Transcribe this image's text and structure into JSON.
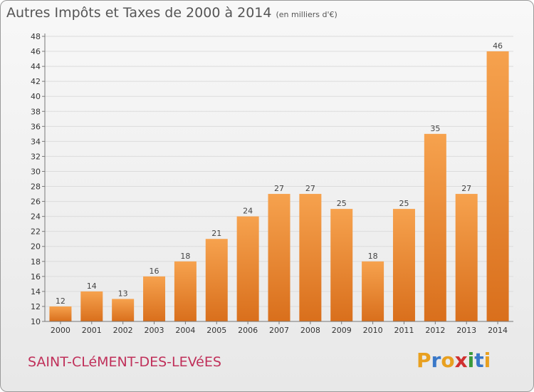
{
  "title": "Autres Impôts et Taxes de 2000 à 2014",
  "subtitle": "(en milliers d'€)",
  "commune": "SAINT-CLéMENT-DES-LEVéES",
  "logo": {
    "text": "Proxiti",
    "colors": [
      "#e8a020",
      "#3a78c8",
      "#e8a020",
      "#d03030",
      "#3a9a3a",
      "#3a78c8",
      "#e8a020"
    ]
  },
  "colors": {
    "bar_top": "#f6a24e",
    "bar_bottom": "#d96f1c",
    "grid": "#dcdcdc",
    "axis": "#777777"
  },
  "chart_data": {
    "type": "bar",
    "categories": [
      "2000",
      "2001",
      "2002",
      "2003",
      "2004",
      "2005",
      "2006",
      "2007",
      "2008",
      "2009",
      "2010",
      "2011",
      "2012",
      "2013",
      "2014"
    ],
    "values": [
      12,
      14,
      13,
      16,
      18,
      21,
      24,
      27,
      27,
      25,
      18,
      25,
      35,
      27,
      46
    ],
    "ylim": [
      10,
      48
    ],
    "yticks": [
      10,
      12,
      14,
      16,
      18,
      20,
      22,
      24,
      26,
      28,
      30,
      32,
      34,
      36,
      38,
      40,
      42,
      44,
      46,
      48
    ],
    "grid": true,
    "data_labels": true
  }
}
